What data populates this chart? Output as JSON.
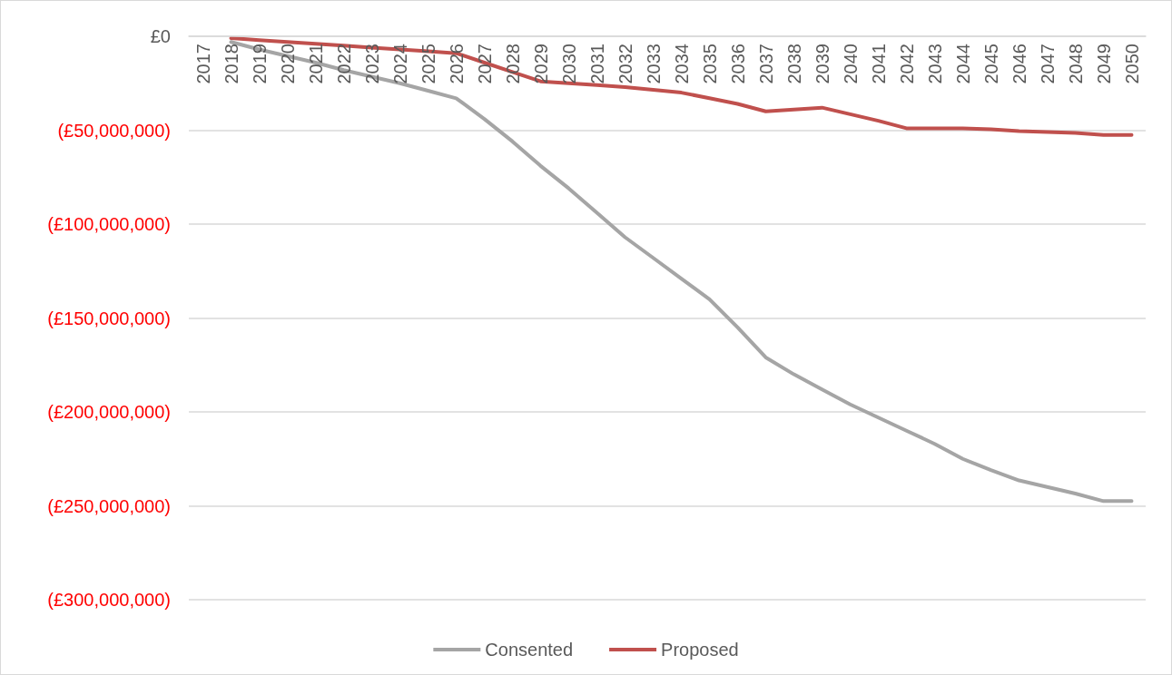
{
  "chart_data": {
    "type": "line",
    "categories": [
      "2017",
      "2018",
      "2019",
      "2020",
      "2021",
      "2022",
      "2023",
      "2024",
      "2025",
      "2026",
      "2027",
      "2028",
      "2029",
      "2030",
      "2031",
      "2032",
      "2033",
      "2034",
      "2035",
      "2036",
      "2037",
      "2038",
      "2039",
      "2040",
      "2041",
      "2042",
      "2043",
      "2044",
      "2045",
      "2046",
      "2047",
      "2048",
      "2049",
      "2050"
    ],
    "series": [
      {
        "name": "Consented",
        "color": "#a5a5a5",
        "values": [
          null,
          -3000000,
          -7000000,
          -10500000,
          -14000000,
          -18000000,
          -21500000,
          -25000000,
          -29000000,
          -33000000,
          -44000000,
          -56000000,
          -69000000,
          -81000000,
          -94000000,
          -107000000,
          -118000000,
          -129000000,
          -140000000,
          -155000000,
          -171000000,
          -180000000,
          -188000000,
          -196000000,
          -203000000,
          -210000000,
          -217000000,
          -225000000,
          -231000000,
          -236500000,
          -240000000,
          -243500000,
          -247500000,
          -247500000
        ]
      },
      {
        "name": "Proposed",
        "color": "#c0504d",
        "values": [
          null,
          -1000000,
          -2000000,
          -3000000,
          -4000000,
          -5000000,
          -6000000,
          -7000000,
          -8000000,
          -9000000,
          -14000000,
          -19000000,
          -24000000,
          -25000000,
          -26000000,
          -27000000,
          -28500000,
          -30000000,
          -33000000,
          -36000000,
          -40000000,
          -39000000,
          -38000000,
          -41500000,
          -45000000,
          -49000000,
          -49000000,
          -49000000,
          -49500000,
          -50500000,
          -51000000,
          -51500000,
          -52500000,
          -52500000
        ]
      }
    ],
    "ylim": [
      -300000000,
      0
    ],
    "yticks": [
      {
        "value": -300000000,
        "label": "(£300,000,000)"
      },
      {
        "value": -250000000,
        "label": "(£250,000,000)"
      },
      {
        "value": -200000000,
        "label": "(£200,000,000)"
      },
      {
        "value": -150000000,
        "label": "(£150,000,000)"
      },
      {
        "value": -100000000,
        "label": "(£100,000,000)"
      },
      {
        "value": -50000000,
        "label": "(£50,000,000)"
      },
      {
        "value": 0,
        "label": "£0"
      }
    ],
    "grid": "y",
    "legend": "bottom",
    "marker": "none",
    "line_style": "solid"
  }
}
